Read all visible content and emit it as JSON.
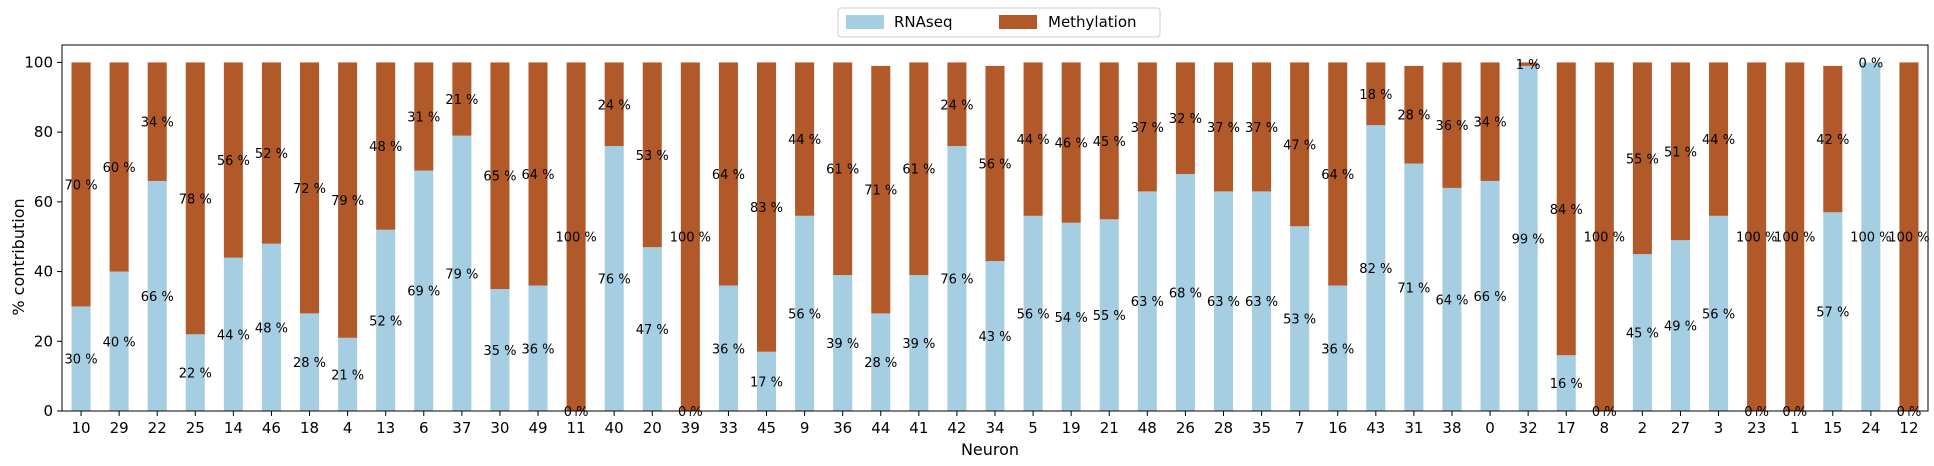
{
  "chart_data": {
    "type": "bar",
    "stacked": true,
    "xlabel": "Neuron",
    "ylabel": "% contribution",
    "ylim": [
      0,
      105
    ],
    "yticks": [
      0,
      20,
      40,
      60,
      80,
      100
    ],
    "legend_position": "top-center",
    "categories": [
      "10",
      "29",
      "22",
      "25",
      "14",
      "46",
      "18",
      "4",
      "13",
      "6",
      "37",
      "30",
      "49",
      "11",
      "40",
      "20",
      "39",
      "33",
      "45",
      "9",
      "36",
      "44",
      "41",
      "42",
      "34",
      "5",
      "19",
      "21",
      "48",
      "26",
      "28",
      "35",
      "7",
      "16",
      "43",
      "31",
      "38",
      "0",
      "32",
      "17",
      "8",
      "2",
      "27",
      "3",
      "23",
      "1",
      "15",
      "24",
      "12"
    ],
    "series": [
      {
        "name": "RNAseq",
        "color": "#a6cee3",
        "values": [
          30,
          40,
          66,
          22,
          44,
          48,
          28,
          21,
          52,
          69,
          79,
          35,
          36,
          0,
          76,
          47,
          0,
          36,
          17,
          56,
          39,
          28,
          39,
          76,
          43,
          56,
          54,
          55,
          63,
          68,
          63,
          63,
          53,
          36,
          82,
          71,
          64,
          66,
          99,
          16,
          0,
          45,
          49,
          56,
          0,
          0,
          57,
          100,
          0
        ],
        "labels": [
          "30 %",
          "40 %",
          "66 %",
          "22 %",
          "44 %",
          "48 %",
          "28 %",
          "21 %",
          "52 %",
          "69 %",
          "79 %",
          "35 %",
          "36 %",
          "0 %",
          "76 %",
          "47 %",
          "0 %",
          "36 %",
          "17 %",
          "56 %",
          "39 %",
          "28 %",
          "39 %",
          "76 %",
          "43 %",
          "56 %",
          "54 %",
          "55 %",
          "63 %",
          "68 %",
          "63 %",
          "63 %",
          "53 %",
          "36 %",
          "82 %",
          "71 %",
          "64 %",
          "66 %",
          "99 %",
          "16 %",
          "0 %",
          "45 %",
          "49 %",
          "56 %",
          "0 %",
          "0 %",
          "57 %",
          "100 %",
          "0 %"
        ]
      },
      {
        "name": "Methylation",
        "color": "#b15928",
        "values": [
          70,
          60,
          34,
          78,
          56,
          52,
          72,
          79,
          48,
          31,
          21,
          65,
          64,
          100,
          24,
          53,
          100,
          64,
          83,
          44,
          61,
          71,
          61,
          24,
          56,
          44,
          46,
          45,
          37,
          32,
          37,
          37,
          47,
          64,
          18,
          28,
          36,
          34,
          1,
          84,
          100,
          55,
          51,
          44,
          100,
          100,
          42,
          0,
          100
        ],
        "labels": [
          "70 %",
          "60 %",
          "34 %",
          "78 %",
          "56 %",
          "52 %",
          "72 %",
          "79 %",
          "48 %",
          "31 %",
          "21 %",
          "65 %",
          "64 %",
          "100 %",
          "24 %",
          "53 %",
          "100 %",
          "64 %",
          "83 %",
          "44 %",
          "61 %",
          "71 %",
          "61 %",
          "24 %",
          "56 %",
          "44 %",
          "46 %",
          "45 %",
          "37 %",
          "32 %",
          "37 %",
          "37 %",
          "47 %",
          "64 %",
          "18 %",
          "28 %",
          "36 %",
          "34 %",
          "1 %",
          "84 %",
          "100 %",
          "55 %",
          "51 %",
          "44 %",
          "100 %",
          "100 %",
          "42 %",
          "0 %",
          "100 %"
        ]
      }
    ]
  }
}
